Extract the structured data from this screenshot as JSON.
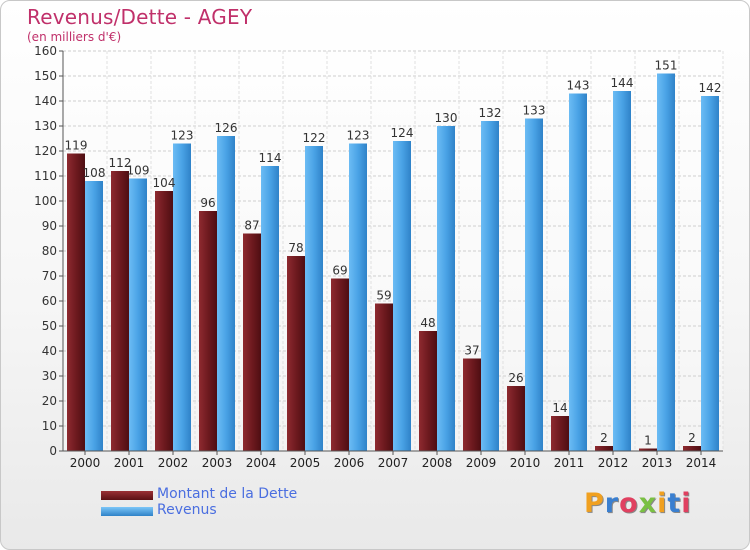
{
  "title": "Revenus/Dette - AGEY",
  "subtitle": "(en milliers d'€)",
  "brand": {
    "letters": [
      "P",
      "r",
      "o",
      "x",
      "i",
      "t",
      "i"
    ],
    "colors": [
      "#f0a020",
      "#3a7fd0",
      "#e04060",
      "#7ac043",
      "#f0a020",
      "#3a7fd0",
      "#e04060"
    ]
  },
  "chart_data": {
    "type": "bar",
    "categories": [
      "2000",
      "2001",
      "2002",
      "2003",
      "2004",
      "2005",
      "2006",
      "2007",
      "2008",
      "2009",
      "2010",
      "2011",
      "2012",
      "2013",
      "2014"
    ],
    "series": [
      {
        "name": "Montant de la Dette",
        "color": "#7a1f24",
        "values": [
          119,
          112,
          104,
          96,
          87,
          78,
          69,
          59,
          48,
          37,
          26,
          14,
          2,
          1,
          2
        ]
      },
      {
        "name": "Revenus",
        "color": "#4aa3e6",
        "values": [
          108,
          109,
          123,
          126,
          114,
          122,
          123,
          124,
          130,
          132,
          133,
          143,
          144,
          151,
          142
        ]
      }
    ],
    "ylim": [
      0,
      160
    ],
    "yticks": [
      0,
      10,
      20,
      30,
      40,
      50,
      60,
      70,
      80,
      90,
      100,
      110,
      120,
      130,
      140,
      150,
      160
    ],
    "grid": true,
    "legend_position": "bottom-left"
  }
}
